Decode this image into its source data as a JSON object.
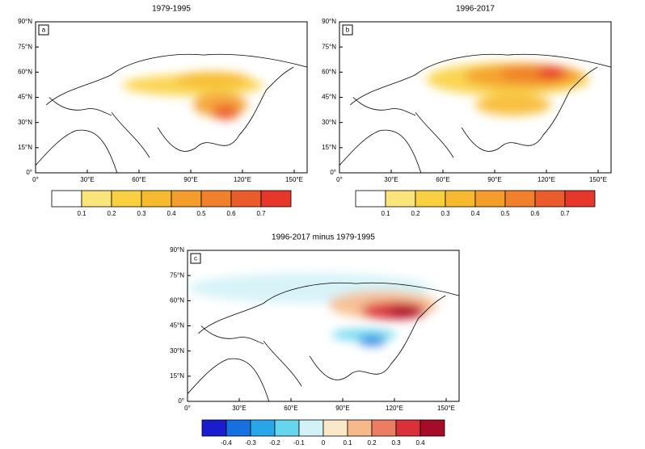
{
  "panels": [
    {
      "title": "1979-1995",
      "letter": "a"
    },
    {
      "title": "1996-2017",
      "letter": "b"
    },
    {
      "title": "1996-2017 minus 1979-1995",
      "letter": "c"
    }
  ],
  "x_tick_labels": [
    "0°",
    "30°E",
    "60°E",
    "90°E",
    "120°E",
    "150°E"
  ],
  "y_tick_labels": [
    "0°",
    "15°N",
    "30°N",
    "45°N",
    "60°N",
    "75°N",
    "90°N"
  ],
  "colorbars": [
    {
      "colors": [
        "#ffffff",
        "#fbe47a",
        "#f9d040",
        "#f7b92e",
        "#f49d2c",
        "#f0802c",
        "#eb5c2c",
        "#e6372a"
      ],
      "labels": [
        "0.1",
        "0.2",
        "0.3",
        "0.4",
        "0.5",
        "0.6",
        "0.7"
      ]
    },
    {
      "colors": [
        "#ffffff",
        "#fbe47a",
        "#f9d040",
        "#f7b92e",
        "#f49d2c",
        "#f0802c",
        "#eb5c2c",
        "#e6372a"
      ],
      "labels": [
        "0.1",
        "0.2",
        "0.3",
        "0.4",
        "0.5",
        "0.6",
        "0.7"
      ]
    },
    {
      "colors": [
        "#1c1ccf",
        "#1670e0",
        "#27a6ea",
        "#66d6ee",
        "#d3f2f7",
        "#fbe8c8",
        "#f6b98a",
        "#ec7d62",
        "#d9303a",
        "#a40c2a"
      ],
      "labels": [
        "-0.4",
        "-0.3",
        "-0.2",
        "-0.1",
        "0",
        "0.1",
        "0.2",
        "0.3",
        "0.4"
      ]
    }
  ]
}
